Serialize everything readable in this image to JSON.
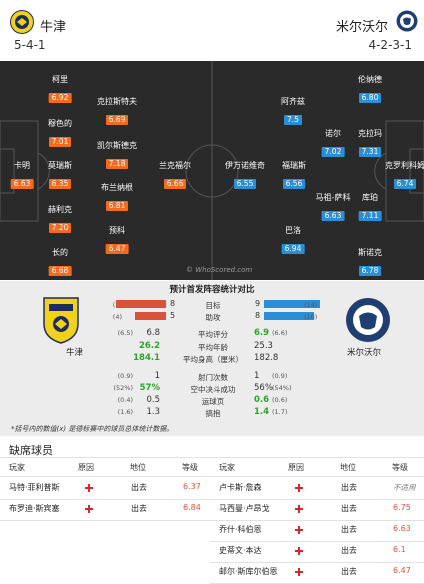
{
  "header": {
    "home": {
      "name": "牛津",
      "formation": "5-4-1",
      "color": "#f2d11a"
    },
    "away": {
      "name": "米尔沃尔",
      "formation": "4-2-3-1",
      "color": "#1f3f73"
    }
  },
  "pitch": {
    "watermark": "© WhoScored.com",
    "home_players": [
      {
        "name": "柯里",
        "rating": "6.92"
      },
      {
        "name": "穆色的",
        "rating": "7.01"
      },
      {
        "name": "卡明",
        "rating": "6.63"
      },
      {
        "name": "莫瑞斯",
        "rating": "6.35"
      },
      {
        "name": "赫利克",
        "rating": "7.20"
      },
      {
        "name": "长的",
        "rating": "6.68"
      },
      {
        "name": "克拉斯特夫",
        "rating": "6.69"
      },
      {
        "name": "凯尔斯德克",
        "rating": "7.18"
      },
      {
        "name": "布兰纳根",
        "rating": "6.81"
      },
      {
        "name": "预科",
        "rating": "6.47"
      },
      {
        "name": "兰克福尔",
        "rating": "6.66"
      }
    ],
    "away_players": [
      {
        "name": "伦纳德",
        "rating": "6.80"
      },
      {
        "name": "阿齐兹",
        "rating": "7.5"
      },
      {
        "name": "诺尔",
        "rating": "7.02"
      },
      {
        "name": "克拉玛",
        "rating": "7.31"
      },
      {
        "name": "伊万诺维奇",
        "rating": "6.55"
      },
      {
        "name": "福瑞斯",
        "rating": "6.56"
      },
      {
        "name": "克罗利科姆",
        "rating": "6.74"
      },
      {
        "name": "马祖-萨科",
        "rating": "6.63"
      },
      {
        "name": "库珀",
        "rating": "7.11"
      },
      {
        "name": "巴洛",
        "rating": "6.94"
      },
      {
        "name": "斯诺克",
        "rating": "6.78"
      }
    ]
  },
  "stats": {
    "title": "预计首发阵容统计对比",
    "home_name": "牛津",
    "away_name": "米尔沃尔",
    "goals": {
      "label": "目标",
      "home": "8",
      "away": "9",
      "home_note": "(1)",
      "away_note": "(14)",
      "home_value": 8,
      "away_value": 9
    },
    "assists": {
      "label": "助攻",
      "home": "5",
      "away": "8",
      "home_note": "(4)",
      "away_note": "(10)",
      "home_value": 5,
      "away_value": 8
    },
    "rows": [
      {
        "label": "平均评分",
        "home": "6.8",
        "away": "6.9",
        "home_note": "(6.5)",
        "away_note": "(6.6)",
        "home_green": false,
        "away_green": true
      },
      {
        "label": "平均年龄",
        "home": "26.2",
        "away": "25.3",
        "home_note": "",
        "away_note": "",
        "home_green": true,
        "away_green": false
      },
      {
        "label": "平均身高（厘米）",
        "home": "184.1",
        "away": "182.8",
        "home_note": "",
        "away_note": "",
        "home_green": true,
        "away_green": false
      },
      {
        "label": "射门次数",
        "home": "1",
        "away": "1",
        "home_note": "(0.9)",
        "away_note": "(0.9)",
        "home_green": false,
        "away_green": false
      },
      {
        "label": "空中决斗成功",
        "home": "57%",
        "away": "56%",
        "home_note": "(52%)",
        "away_note": "(54%)",
        "home_green": true,
        "away_green": false
      },
      {
        "label": "运球页",
        "home": "0.5",
        "away": "0.6",
        "home_note": "(0.4)",
        "away_note": "(0.6)",
        "home_green": false,
        "away_green": true
      },
      {
        "label": "搞抱",
        "home": "1.3",
        "away": "1.4",
        "home_note": "(1.6)",
        "away_note": "(1.7)",
        "home_green": false,
        "away_green": true
      }
    ],
    "footnote": "*括号内的数值(x) 是德标赛中的球员总体统计数据。"
  },
  "injuries": {
    "title": "缺席球员",
    "headers": {
      "player": "玩家",
      "reason": "原因",
      "status": "地位",
      "rating": "等级"
    },
    "home": [
      {
        "player": "马特·菲利普斯",
        "status": "出去",
        "rating": "6.37"
      },
      {
        "player": "布罗迪·斯宾塞",
        "status": "出去",
        "rating": "6.84"
      }
    ],
    "away": [
      {
        "player": "卢卡斯·詹森",
        "status": "出去",
        "rating": "不适用"
      },
      {
        "player": "马西曼·卢昂戈",
        "status": "出去",
        "rating": "6.75"
      },
      {
        "player": "乔什·科伯恩",
        "status": "出去",
        "rating": "6.63"
      },
      {
        "player": "史蒂文·本达",
        "status": "出去",
        "rating": "6.1"
      },
      {
        "player": "邮尔·斯库尔伯恩",
        "status": "出去",
        "rating": "6.47"
      }
    ]
  }
}
